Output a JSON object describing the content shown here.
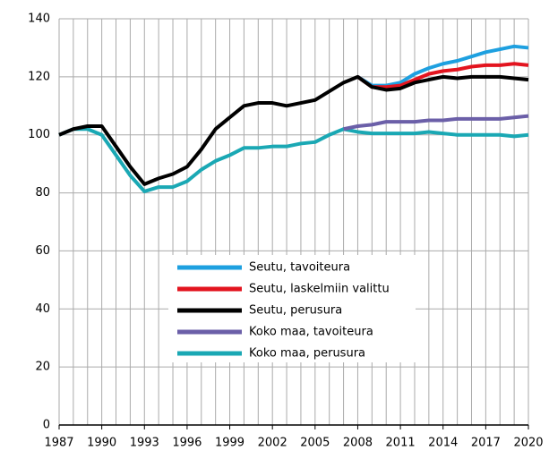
{
  "chart_data": {
    "type": "line",
    "x": [
      1987,
      1988,
      1989,
      1990,
      1991,
      1992,
      1993,
      1994,
      1995,
      1996,
      1997,
      1998,
      1999,
      2000,
      2001,
      2002,
      2003,
      2004,
      2005,
      2006,
      2007,
      2008,
      2009,
      2010,
      2011,
      2012,
      2013,
      2014,
      2015,
      2016,
      2017,
      2018,
      2019,
      2020
    ],
    "xlim": [
      1987,
      2020
    ],
    "xticks": [
      1987,
      1990,
      1993,
      1996,
      1999,
      2002,
      2005,
      2008,
      2011,
      2014,
      2017,
      2020
    ],
    "ylim": [
      0,
      140
    ],
    "yticks": [
      0,
      20,
      40,
      60,
      80,
      100,
      120,
      140
    ],
    "grid": true,
    "series": [
      {
        "name": "Seutu, tavoiteura",
        "color": "#1ea0e0",
        "values": [
          null,
          null,
          null,
          null,
          null,
          null,
          null,
          null,
          null,
          null,
          null,
          null,
          null,
          null,
          null,
          null,
          null,
          null,
          null,
          null,
          null,
          120,
          117,
          117,
          118,
          121,
          123,
          124.5,
          125.5,
          127,
          128.5,
          129.5,
          130.5,
          130
        ]
      },
      {
        "name": "Seutu, laskelmiin valittu",
        "color": "#e3141f",
        "values": [
          null,
          null,
          null,
          null,
          null,
          null,
          null,
          null,
          null,
          null,
          null,
          null,
          null,
          null,
          null,
          null,
          null,
          null,
          null,
          null,
          null,
          120,
          116.5,
          116.5,
          117,
          119,
          121,
          122,
          122.5,
          123.5,
          124,
          124,
          124.5,
          124
        ]
      },
      {
        "name": "Seutu, perusura",
        "color": "#000000",
        "values": [
          100,
          102,
          103,
          103,
          96,
          89,
          83,
          85,
          86.5,
          89,
          95,
          102,
          106,
          110,
          111,
          111,
          110,
          111,
          112,
          115,
          118,
          120,
          116.5,
          115.5,
          116,
          118,
          119,
          120,
          119.5,
          120,
          120,
          120,
          119.5,
          119
        ]
      },
      {
        "name": "Koko maa, tavoiteura",
        "color": "#6b5fa8",
        "values": [
          null,
          null,
          null,
          null,
          null,
          null,
          null,
          null,
          null,
          null,
          null,
          null,
          null,
          null,
          null,
          null,
          null,
          null,
          null,
          null,
          102,
          103,
          103.5,
          104.5,
          104.5,
          104.5,
          105,
          105,
          105.5,
          105.5,
          105.5,
          105.5,
          106,
          106.5
        ]
      },
      {
        "name": "Koko maa, perusura",
        "color": "#1aa8b4",
        "values": [
          100,
          102,
          102,
          100,
          93,
          86,
          80.5,
          82,
          82,
          84,
          88,
          91,
          93,
          95.5,
          95.5,
          96,
          96,
          97,
          97.5,
          100,
          102,
          101,
          100.5,
          100.5,
          100.5,
          100.5,
          101,
          100.5,
          100,
          100,
          100,
          100,
          99.5,
          100
        ]
      }
    ],
    "legend": "center-bottom"
  }
}
